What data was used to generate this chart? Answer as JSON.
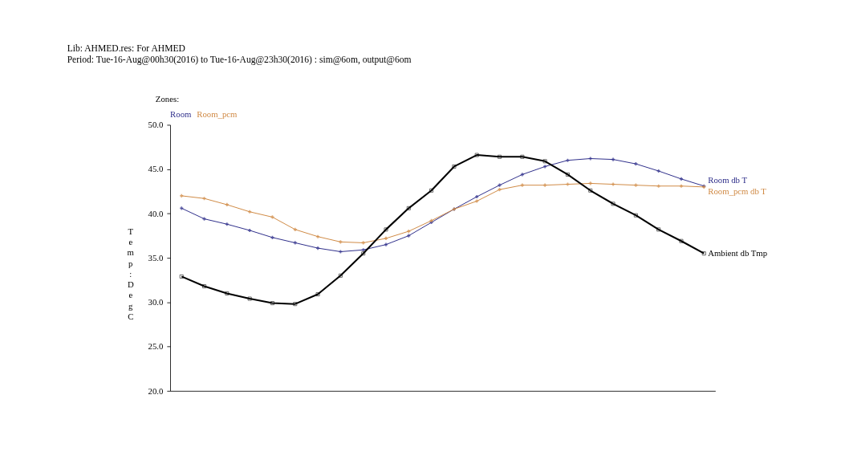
{
  "chart_data": {
    "type": "line",
    "title": "Lib: AHMED.res: For AHMED",
    "subtitle": "Period: Tue-16-Aug@00h30(2016) to Tue-16-Aug@23h30(2016) : sim@6om, output@6om",
    "legend_title": "Zones:",
    "annotations": [
      "Room",
      "Room_pcm"
    ],
    "ylabel": "Temp: DegC",
    "categories": [
      null,
      null,
      null,
      null,
      null,
      null,
      null,
      null,
      null,
      null,
      null,
      null,
      null,
      null,
      null,
      null,
      null,
      null,
      null,
      null,
      null,
      null,
      null,
      null
    ],
    "series": [
      {
        "name": "Room db T",
        "color": "#2e2e8a",
        "marker": "cross",
        "values": [
          40.6,
          39.4,
          38.8,
          38.1,
          37.3,
          36.7,
          36.1,
          35.7,
          35.9,
          36.5,
          37.5,
          39.0,
          40.5,
          41.9,
          43.2,
          44.4,
          45.3,
          46.0,
          46.2,
          46.1,
          45.6,
          44.8,
          43.9,
          43.1
        ]
      },
      {
        "name": "Room_pcm db T",
        "color": "#d08a45",
        "marker": "cross",
        "values": [
          42.0,
          41.7,
          41.0,
          40.2,
          39.6,
          38.2,
          37.4,
          36.8,
          36.7,
          37.2,
          38.0,
          39.2,
          40.5,
          41.4,
          42.7,
          43.2,
          43.2,
          43.3,
          43.4,
          43.3,
          43.2,
          43.1,
          43.1,
          43.0
        ]
      },
      {
        "name": "Ambient db Tmp",
        "color": "#000000",
        "marker": "square",
        "values": [
          32.9,
          31.8,
          31.0,
          30.4,
          29.9,
          29.8,
          30.9,
          33.0,
          35.5,
          38.2,
          40.6,
          42.6,
          45.3,
          46.6,
          46.4,
          46.4,
          45.9,
          44.4,
          42.6,
          41.1,
          39.8,
          38.2,
          36.9,
          35.5
        ]
      }
    ],
    "ylim": [
      20,
      50
    ],
    "yticks": [
      {
        "value": 20,
        "label": "20.0"
      },
      {
        "value": 25,
        "label": "25.0"
      },
      {
        "value": 30,
        "label": "30.0"
      },
      {
        "value": 35,
        "label": "35.0"
      },
      {
        "value": 40,
        "label": "40.0"
      },
      {
        "value": 45,
        "label": "45.0"
      },
      {
        "value": 50,
        "label": "50.0"
      }
    ],
    "grid": false,
    "line_style": "solid"
  }
}
